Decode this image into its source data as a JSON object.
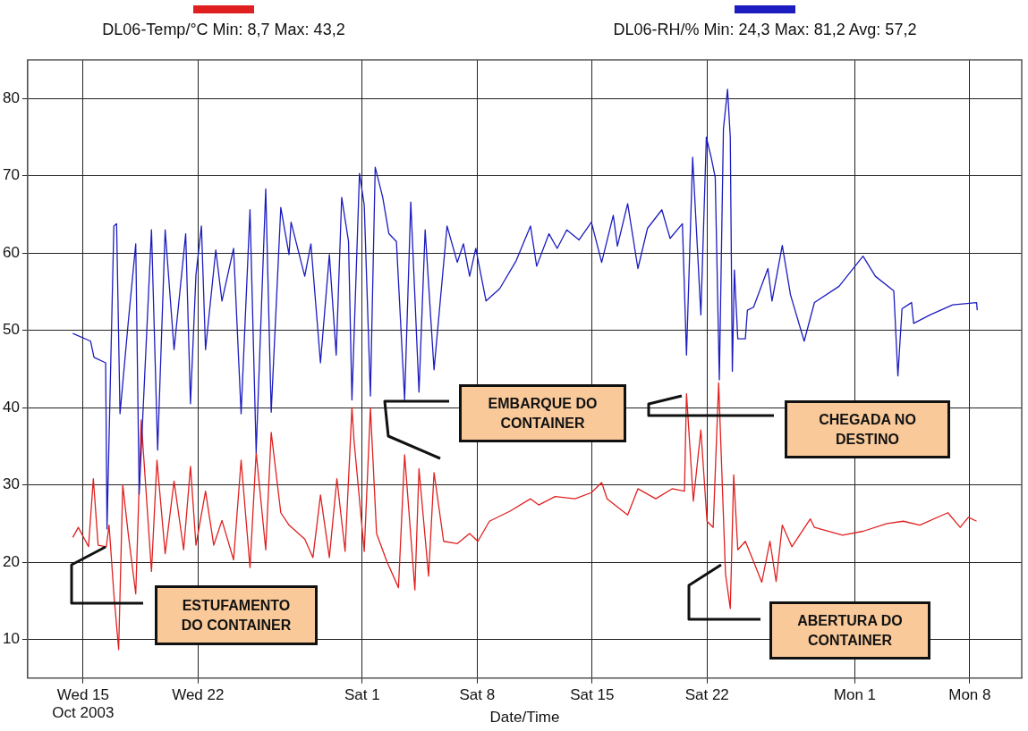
{
  "chart_data": {
    "type": "line",
    "xlabel": "Date/Time",
    "legend": "top",
    "grid": true,
    "marker": "none",
    "line_style": "solid",
    "xlim": [
      "2003-10-11T15:00",
      "2003-12-11T04:00"
    ],
    "xticks": [
      {
        "value": "2003-10-15",
        "label": "Wed 15\nOct 2003"
      },
      {
        "value": "2003-10-22",
        "label": "Wed 22"
      },
      {
        "value": "2003-11-01",
        "label": "Sat 1"
      },
      {
        "value": "2003-11-08",
        "label": "Sat 8"
      },
      {
        "value": "2003-11-15",
        "label": "Sat 15"
      },
      {
        "value": "2003-11-22",
        "label": "Sat 22"
      },
      {
        "value": "2003-12-01",
        "label": "Mon 1"
      },
      {
        "value": "2003-12-08",
        "label": "Mon 8"
      }
    ],
    "ylim": [
      5,
      85
    ],
    "yticks": [
      10,
      20,
      30,
      40,
      50,
      60,
      70,
      80
    ],
    "series": [
      {
        "name": "DL06-Temp/°C Min: 8,7 Max: 43,2",
        "color": "#e02020",
        "x": [
          "2003-10-14T09:00",
          "2003-10-14T17:00",
          "2003-10-15T08:00",
          "2003-10-15T15:00",
          "2003-10-15T22:00",
          "2003-10-16T10:00",
          "2003-10-16T14:00",
          "2003-10-16T21:00",
          "2003-10-17T04:00",
          "2003-10-17T10:00",
          "2003-10-17T18:00",
          "2003-10-18T05:00",
          "2003-10-18T13:00",
          "2003-10-19T04:00",
          "2003-10-19T12:00",
          "2003-10-20T00:00",
          "2003-10-20T13:00",
          "2003-10-21T03:00",
          "2003-10-21T13:00",
          "2003-10-21T21:00",
          "2003-10-22T11:00",
          "2003-10-22T23:00",
          "2003-10-23T11:00",
          "2003-10-24T04:00",
          "2003-10-24T15:00",
          "2003-10-25T04:00",
          "2003-10-25T13:00",
          "2003-10-26T03:00",
          "2003-10-26T11:00",
          "2003-10-27T01:00",
          "2003-10-27T13:00",
          "2003-10-28T12:00",
          "2003-10-29T00:00",
          "2003-10-29T11:00",
          "2003-10-30T00:00",
          "2003-10-30T11:00",
          "2003-10-30T23:00",
          "2003-10-31T09:00",
          "2003-10-31T12:00",
          "2003-11-01T03:00",
          "2003-11-01T12:00",
          "2003-11-01T21:00",
          "2003-11-02T12:00",
          "2003-11-03T05:00",
          "2003-11-03T14:00",
          "2003-11-04T05:00",
          "2003-11-04T11:00",
          "2003-11-05T01:00",
          "2003-11-05T09:00",
          "2003-11-05T23:00",
          "2003-11-06T19:00",
          "2003-11-07T13:00",
          "2003-11-08T01:00",
          "2003-11-08T18:00",
          "2003-11-10T00:00",
          "2003-11-11T06:00",
          "2003-11-11T18:00",
          "2003-11-12T18:00",
          "2003-11-13T23:00",
          "2003-11-14T23:00",
          "2003-11-15T14:00",
          "2003-11-15T22:00",
          "2003-11-17T04:00",
          "2003-11-17T19:00",
          "2003-11-18T21:00",
          "2003-11-19T21:00",
          "2003-11-20T15:00",
          "2003-11-20T18:00",
          "2003-11-21T04:00",
          "2003-11-21T15:00",
          "2003-11-22T00:00",
          "2003-11-22T09:00",
          "2003-11-22T17:00",
          "2003-11-23T03:00",
          "2003-11-23T10:00",
          "2003-11-23T15:00",
          "2003-11-23T21:00",
          "2003-11-24T08:00",
          "2003-11-24T20:00",
          "2003-11-25T08:00",
          "2003-11-25T20:00",
          "2003-11-26T05:00",
          "2003-11-26T14:00",
          "2003-11-27T04:00",
          "2003-11-28T07:00",
          "2003-11-28T13:00",
          "2003-11-30T06:00",
          "2003-12-01T12:00",
          "2003-12-02T23:00",
          "2003-12-03T23:00",
          "2003-12-04T23:00",
          "2003-12-06T16:00",
          "2003-12-07T10:00",
          "2003-12-07T22:00",
          "2003-12-08T10:00"
        ],
        "values": [
          23.2,
          24.5,
          22,
          30.8,
          22.2,
          22,
          24.8,
          15.9,
          8.7,
          30,
          23.7,
          15.9,
          38.4,
          18.8,
          33.2,
          21.1,
          30.5,
          21.6,
          32.4,
          22.2,
          29.2,
          22.2,
          25.4,
          20.3,
          33.2,
          19.3,
          34.2,
          21.6,
          36.8,
          26.4,
          24.8,
          23,
          20.6,
          28.7,
          20.6,
          30.8,
          21.4,
          40,
          35.8,
          21.4,
          40,
          23.7,
          20.1,
          16.7,
          33.9,
          16.4,
          32.1,
          18.2,
          31.6,
          22.7,
          22.4,
          23.7,
          22.7,
          25.3,
          26.6,
          28.2,
          27.4,
          28.5,
          28.2,
          29,
          30.3,
          28.2,
          26.1,
          29.5,
          28.2,
          29.5,
          29.2,
          41.8,
          27.9,
          37.1,
          25.3,
          24.5,
          43.2,
          18.5,
          14,
          31.3,
          21.6,
          22.7,
          20.1,
          17.4,
          22.7,
          17.5,
          24.8,
          22,
          25.6,
          24.5,
          23.5,
          24,
          25,
          25.3,
          24.8,
          26.4,
          24.5,
          25.8,
          25.3
        ]
      },
      {
        "name": "DL06-RH/% Min: 24,3 Max: 81,2 Avg: 57,2",
        "color": "#1c1cc0",
        "x": [
          "2003-10-14T09:00",
          "2003-10-15T11:00",
          "2003-10-15T16:00",
          "2003-10-16T09:00",
          "2003-10-16T11:00",
          "2003-10-16T21:00",
          "2003-10-17T01:00",
          "2003-10-17T06:00",
          "2003-10-17T18:00",
          "2003-10-18T05:00",
          "2003-10-18T10:00",
          "2003-10-19T04:00",
          "2003-10-19T13:00",
          "2003-10-20T00:00",
          "2003-10-20T13:00",
          "2003-10-21T06:00",
          "2003-10-21T13:00",
          "2003-10-21T21:00",
          "2003-10-22T05:00",
          "2003-10-22T11:00",
          "2003-10-23T02:00",
          "2003-10-23T11:00",
          "2003-10-24T04:00",
          "2003-10-24T15:00",
          "2003-10-25T04:00",
          "2003-10-25T13:00",
          "2003-10-26T03:00",
          "2003-10-26T11:00",
          "2003-10-27T01:00",
          "2003-10-27T13:00",
          "2003-10-27T16:00",
          "2003-10-28T12:00",
          "2003-10-28T21:00",
          "2003-10-29T11:00",
          "2003-10-30T00:00",
          "2003-10-30T10:00",
          "2003-10-30T18:00",
          "2003-10-31T04:00",
          "2003-10-31T09:00",
          "2003-10-31T20:00",
          "2003-11-01T03:00",
          "2003-11-01T12:00",
          "2003-11-01T19:00",
          "2003-11-02T06:00",
          "2003-11-02T15:00",
          "2003-11-03T02:00",
          "2003-11-03T14:00",
          "2003-11-03T23:00",
          "2003-11-04T11:00",
          "2003-11-04T20:00",
          "2003-11-05T09:00",
          "2003-11-06T04:00",
          "2003-11-06T19:00",
          "2003-11-07T04:00",
          "2003-11-07T13:00",
          "2003-11-07T22:00",
          "2003-11-08T13:00",
          "2003-11-09T09:00",
          "2003-11-10T09:00",
          "2003-11-11T06:00",
          "2003-11-11T15:00",
          "2003-11-12T09:00",
          "2003-11-12T21:00",
          "2003-11-13T11:00",
          "2003-11-14T05:00",
          "2003-11-14T23:00",
          "2003-11-15T14:00",
          "2003-11-16T07:00",
          "2003-11-16T13:00",
          "2003-11-17T04:00",
          "2003-11-17T19:00",
          "2003-11-18T09:00",
          "2003-11-19T06:00",
          "2003-11-19T18:00",
          "2003-11-20T12:00",
          "2003-11-20T18:00",
          "2003-11-21T03:00",
          "2003-11-21T15:00",
          "2003-11-21T23:00",
          "2003-11-22T06:00",
          "2003-11-22T12:00",
          "2003-11-22T18:00",
          "2003-11-23T00:00",
          "2003-11-23T06:00",
          "2003-11-23T10:00",
          "2003-11-23T13:00",
          "2003-11-23T16:00",
          "2003-11-23T21:00",
          "2003-11-24T08:00",
          "2003-11-24T11:00",
          "2003-11-24T20:00",
          "2003-11-25T17:00",
          "2003-11-25T23:00",
          "2003-11-26T14:00",
          "2003-11-27T02:00",
          "2003-11-27T22:00",
          "2003-11-28T13:00",
          "2003-11-30T01:00",
          "2003-12-01T12:00",
          "2003-12-02T06:00",
          "2003-12-03T09:00",
          "2003-12-03T15:00",
          "2003-12-03T21:00",
          "2003-12-04T11:00",
          "2003-12-04T14:00",
          "2003-12-05T14:00",
          "2003-12-06T23:00",
          "2003-12-08T10:00",
          "2003-12-08T11:00"
        ],
        "values": [
          49.6,
          48.6,
          46.5,
          45.8,
          24.3,
          63.5,
          63.8,
          39.2,
          51,
          61.2,
          28.8,
          63,
          34.5,
          63,
          47.5,
          62.5,
          40.5,
          57.2,
          63.5,
          47.5,
          60.4,
          53.8,
          60.6,
          39.2,
          65.6,
          34.2,
          68.3,
          39.4,
          65.9,
          59.8,
          64,
          57,
          61.2,
          45.8,
          59.8,
          46.8,
          67.2,
          61.5,
          41,
          70.3,
          66.2,
          41.5,
          71.1,
          67.2,
          62.5,
          61.5,
          41,
          66.6,
          42,
          63,
          44.9,
          63.5,
          58.8,
          61.2,
          57,
          60.6,
          53.8,
          55.4,
          59,
          63.5,
          58.3,
          62.5,
          60.6,
          63,
          61.7,
          64,
          58.8,
          64.9,
          60.9,
          66.4,
          58,
          63.2,
          65.6,
          61.9,
          63.8,
          46.8,
          72.4,
          52,
          75,
          72.4,
          69.8,
          43.6,
          76.1,
          81.2,
          75,
          44.7,
          57.8,
          48.9,
          48.9,
          52.6,
          53,
          58,
          53.8,
          61,
          54.6,
          48.6,
          53.6,
          55.7,
          59.6,
          57,
          55.1,
          44.1,
          52.8,
          53.6,
          50.9,
          52,
          53.3,
          53.6,
          52.6
        ]
      }
    ],
    "annotations": [
      "ESTUFAMENTO\nDO CONTAINER",
      "EMBARQUE DO\nCONTAINER",
      "CHEGADA NO\nDESTINO",
      "ABERTURA DO\nCONTAINER"
    ]
  }
}
